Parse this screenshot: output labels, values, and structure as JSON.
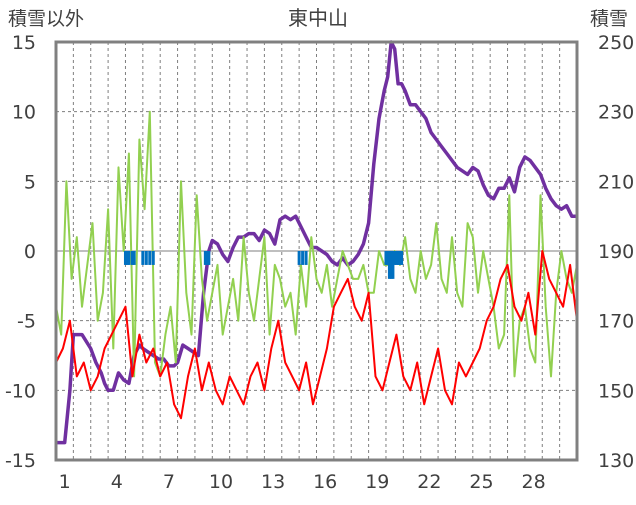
{
  "chart_data": {
    "type": "line",
    "title": "東中山",
    "left_axis_label": "積雪以外",
    "right_axis_label": "積雪",
    "left_ylim": [
      -15,
      15
    ],
    "left_yticks": [
      "15",
      "10",
      "5",
      "0",
      "-5",
      "-10",
      "-15"
    ],
    "right_ylim": [
      130,
      250
    ],
    "right_yticks": [
      "250",
      "230",
      "210",
      "190",
      "170",
      "150",
      "130"
    ],
    "xlim": [
      0,
      30
    ],
    "xticks": [
      "1",
      "4",
      "7",
      "10",
      "13",
      "16",
      "19",
      "22",
      "25",
      "28"
    ],
    "grid": true,
    "colors": {
      "snow_depth": "#7030a0",
      "temp_a": "#92d050",
      "temp_b": "#ff0000",
      "precip": "#0070c0",
      "frame": "#808080",
      "grid": "#7f7f7f"
    },
    "series": [
      {
        "color_key": "snow_depth",
        "axis": "right",
        "x": [
          0.0,
          0.5,
          0.8,
          1.0,
          1.5,
          2.0,
          2.3,
          2.6,
          2.8,
          3.0,
          3.3,
          3.6,
          3.9,
          4.2,
          4.5,
          4.8,
          5.0,
          5.3,
          5.6,
          5.9,
          6.2,
          6.5,
          6.8,
          7.0,
          7.3,
          7.6,
          7.9,
          8.2,
          8.5,
          8.8,
          9.0,
          9.3,
          9.6,
          9.9,
          10.2,
          10.5,
          10.8,
          11.1,
          11.4,
          11.7,
          12.0,
          12.3,
          12.6,
          12.9,
          13.2,
          13.5,
          13.8,
          14.1,
          14.4,
          14.7,
          15.0,
          15.3,
          15.6,
          15.9,
          16.2,
          16.5,
          16.8,
          17.1,
          17.4,
          17.7,
          18.0,
          18.3,
          18.6,
          18.9,
          19.1,
          19.3,
          19.5,
          19.7,
          19.9,
          20.1,
          20.4,
          20.7,
          21.0,
          21.3,
          21.6,
          21.9,
          22.2,
          22.5,
          22.8,
          23.1,
          23.4,
          23.7,
          24.0,
          24.3,
          24.6,
          24.9,
          25.2,
          25.5,
          25.8,
          26.1,
          26.4,
          26.7,
          27.0,
          27.3,
          27.6,
          27.9,
          28.2,
          28.5,
          28.8,
          29.1,
          29.4,
          29.7,
          30.0
        ],
        "values": [
          135,
          135,
          150,
          166,
          166,
          162,
          158,
          155,
          152,
          150,
          150,
          155,
          153,
          152,
          160,
          163,
          162,
          161,
          160,
          159,
          159,
          157,
          157,
          158,
          163,
          162,
          161,
          160,
          178,
          190,
          193,
          192,
          189,
          187,
          191,
          194,
          194,
          195,
          195,
          193,
          196,
          195,
          192,
          199,
          200,
          199,
          200,
          197,
          194,
          191,
          191,
          190,
          189,
          187,
          186,
          188,
          186,
          187,
          189,
          192,
          198,
          215,
          228,
          236,
          240,
          250,
          248,
          238,
          238,
          236,
          232,
          232,
          230,
          228,
          224,
          222,
          220,
          218,
          216,
          214,
          213,
          212,
          214,
          213,
          209,
          206,
          205,
          208,
          208,
          211,
          207,
          214,
          217,
          216,
          214,
          212,
          208,
          205,
          203,
          202,
          203,
          200,
          200
        ]
      },
      {
        "color_key": "temp_a",
        "axis": "left",
        "x": [
          0.0,
          0.3,
          0.6,
          0.9,
          1.2,
          1.5,
          1.8,
          2.1,
          2.4,
          2.7,
          3.0,
          3.3,
          3.6,
          3.9,
          4.2,
          4.5,
          4.8,
          5.1,
          5.4,
          5.7,
          6.0,
          6.3,
          6.6,
          6.9,
          7.2,
          7.5,
          7.8,
          8.1,
          8.4,
          8.7,
          9.0,
          9.3,
          9.6,
          9.9,
          10.2,
          10.5,
          10.8,
          11.1,
          11.4,
          11.7,
          12.0,
          12.3,
          12.6,
          12.9,
          13.2,
          13.5,
          13.8,
          14.1,
          14.4,
          14.7,
          15.0,
          15.3,
          15.6,
          15.9,
          16.2,
          16.5,
          16.8,
          17.1,
          17.4,
          17.7,
          18.0,
          18.3,
          18.6,
          18.9,
          19.2,
          19.5,
          19.8,
          20.1,
          20.4,
          20.7,
          21.0,
          21.3,
          21.6,
          21.9,
          22.2,
          22.5,
          22.8,
          23.1,
          23.4,
          23.7,
          24.0,
          24.3,
          24.6,
          24.9,
          25.2,
          25.5,
          25.8,
          26.1,
          26.4,
          26.7,
          27.0,
          27.3,
          27.6,
          27.9,
          28.2,
          28.5,
          28.8,
          29.1,
          29.4,
          29.7,
          30.0
        ],
        "values": [
          -4,
          -6,
          5,
          -2,
          1,
          -4,
          -1,
          2,
          -5,
          -3,
          3,
          -7,
          6,
          0,
          7,
          -9,
          8,
          3,
          10,
          -8,
          -9,
          -6,
          -4,
          -8,
          5,
          -3,
          -6,
          4,
          -2,
          -5,
          -3,
          -1,
          -6,
          -4,
          -2,
          -5,
          1,
          -3,
          -5,
          -2,
          1,
          -6,
          -1,
          -2,
          -4,
          -3,
          -6,
          -1,
          -4,
          1,
          -2,
          -3,
          -1,
          -4,
          -2,
          0,
          -1,
          -2,
          -2,
          -1,
          -3,
          -3,
          0,
          -1,
          -1,
          0,
          -1,
          1,
          -2,
          -3,
          0,
          -2,
          -1,
          2,
          -2,
          -3,
          1,
          -3,
          -4,
          2,
          1,
          -3,
          0,
          -2,
          -4,
          -7,
          -6,
          4,
          -9,
          -5,
          -4,
          -7,
          -8,
          4,
          -4,
          -9,
          -3,
          0,
          -2,
          -3,
          -1
        ]
      },
      {
        "color_key": "temp_b",
        "axis": "left",
        "x": [
          0.0,
          0.4,
          0.8,
          1.2,
          1.6,
          2.0,
          2.4,
          2.8,
          3.2,
          3.6,
          4.0,
          4.4,
          4.8,
          5.2,
          5.6,
          6.0,
          6.4,
          6.8,
          7.2,
          7.6,
          8.0,
          8.4,
          8.8,
          9.2,
          9.6,
          10.0,
          10.4,
          10.8,
          11.2,
          11.6,
          12.0,
          12.4,
          12.8,
          13.2,
          13.6,
          14.0,
          14.4,
          14.8,
          15.2,
          15.6,
          16.0,
          16.4,
          16.8,
          17.2,
          17.6,
          18.0,
          18.4,
          18.8,
          19.2,
          19.6,
          20.0,
          20.4,
          20.8,
          21.2,
          21.6,
          22.0,
          22.4,
          22.8,
          23.2,
          23.6,
          24.0,
          24.4,
          24.8,
          25.2,
          25.6,
          26.0,
          26.4,
          26.8,
          27.2,
          27.6,
          28.0,
          28.4,
          28.8,
          29.2,
          29.6,
          30.0
        ],
        "values": [
          -8,
          -7,
          -5,
          -9,
          -8,
          -10,
          -9,
          -7,
          -6,
          -5,
          -4,
          -9,
          -6,
          -8,
          -7,
          -9,
          -8,
          -11,
          -12,
          -9,
          -7,
          -10,
          -8,
          -10,
          -11,
          -9,
          -10,
          -11,
          -9,
          -8,
          -10,
          -7,
          -5,
          -8,
          -9,
          -10,
          -8,
          -11,
          -9,
          -7,
          -4,
          -3,
          -2,
          -4,
          -5,
          -3,
          -9,
          -10,
          -8,
          -6,
          -9,
          -10,
          -8,
          -11,
          -9,
          -7,
          -10,
          -11,
          -8,
          -9,
          -8,
          -7,
          -5,
          -4,
          -2,
          -1,
          -4,
          -5,
          -3,
          -6,
          0,
          -2,
          -3,
          -4,
          -1,
          -5
        ]
      },
      {
        "color_key": "precip",
        "axis": "left",
        "type": "bar",
        "x": [
          4.0,
          4.1,
          4.2,
          4.4,
          4.5,
          5.0,
          5.2,
          5.4,
          5.6,
          8.6,
          8.7,
          8.8,
          14.0,
          14.2,
          14.4,
          19.0,
          19.1,
          19.2,
          19.3,
          19.4,
          19.5,
          19.6,
          19.7,
          19.8,
          19.9
        ],
        "values": [
          -1.0,
          -1.0,
          -1.0,
          -1.0,
          -1.0,
          -1.0,
          -1.0,
          -1.0,
          -1.0,
          -1.0,
          -1.0,
          -1.0,
          -1.0,
          -1.0,
          -1.0,
          -1.0,
          -1.0,
          -2.0,
          -2.0,
          -2.0,
          -1.0,
          -1.0,
          -1.0,
          -1.0,
          -1.0
        ]
      }
    ]
  }
}
